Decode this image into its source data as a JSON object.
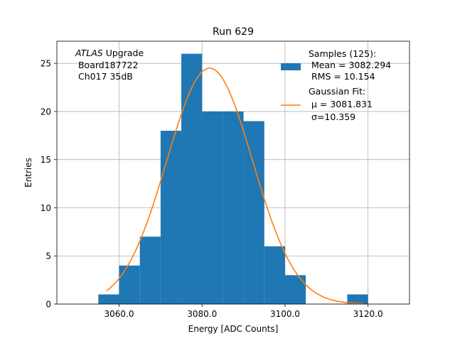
{
  "chart_data": {
    "type": "bar",
    "title": "Run 629",
    "xlabel": "Energy [ADC Counts]",
    "ylabel": "Entries",
    "xlim": [
      3045,
      3130
    ],
    "ylim": [
      0,
      27.3
    ],
    "x_ticks": [
      3060,
      3080,
      3100,
      3120
    ],
    "x_tick_labels": [
      "3060.0",
      "3080.0",
      "3100.0",
      "3120.0"
    ],
    "y_ticks": [
      0,
      5,
      10,
      15,
      20,
      25
    ],
    "y_tick_labels": [
      "0",
      "5",
      "10",
      "15",
      "20",
      "25"
    ],
    "grid": true,
    "bins": [
      {
        "x0": 3055,
        "x1": 3060,
        "count": 1
      },
      {
        "x0": 3060,
        "x1": 3065,
        "count": 4
      },
      {
        "x0": 3065,
        "x1": 3070,
        "count": 7
      },
      {
        "x0": 3070,
        "x1": 3075,
        "count": 18
      },
      {
        "x0": 3075,
        "x1": 3080,
        "count": 26
      },
      {
        "x0": 3080,
        "x1": 3085,
        "count": 20
      },
      {
        "x0": 3085,
        "x1": 3090,
        "count": 20
      },
      {
        "x0": 3090,
        "x1": 3095,
        "count": 19
      },
      {
        "x0": 3095,
        "x1": 3100,
        "count": 6
      },
      {
        "x0": 3100,
        "x1": 3105,
        "count": 3
      },
      {
        "x0": 3115,
        "x1": 3120,
        "count": 1
      }
    ],
    "fit": {
      "mu": 3081.831,
      "sigma": 10.359,
      "amplitude": 24.5,
      "x_range": [
        3057,
        3119
      ]
    },
    "annotation_lines": [
      "ATLAS Upgrade",
      " Board187722",
      " Ch017 35dB"
    ],
    "legend": {
      "placement": "top-right",
      "entries": [
        {
          "kind": "patch",
          "color": "#1f77b4",
          "label_lines": [
            "Samples (125):",
            " Mean = 3082.294",
            " RMS = 10.154"
          ]
        },
        {
          "kind": "line",
          "color": "#ff7f0e",
          "label_lines": [
            "Gaussian Fit:",
            " μ = 3081.831",
            " σ=10.359"
          ]
        }
      ]
    },
    "colors": {
      "bars": "#1f77b4",
      "fit": "#ff7f0e",
      "grid": "#b0b0b0"
    }
  }
}
